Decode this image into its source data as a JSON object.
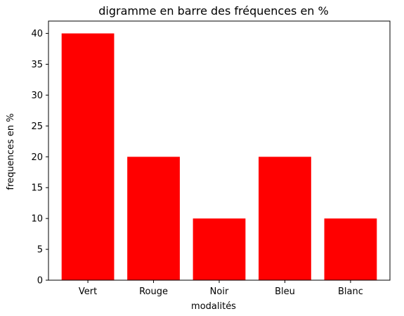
{
  "chart_data": {
    "type": "bar",
    "title": "digramme en barre des fréquences en %",
    "xlabel": "modalités",
    "ylabel": "frequences en %",
    "categories": [
      "Vert",
      "Rouge",
      "Noir",
      "Bleu",
      "Blanc"
    ],
    "values": [
      40,
      20,
      10,
      20,
      10
    ],
    "ylim": [
      0,
      42
    ],
    "yticks": [
      0,
      5,
      10,
      15,
      20,
      25,
      30,
      35,
      40
    ],
    "grid": false,
    "bar_color": "#ff0000"
  }
}
